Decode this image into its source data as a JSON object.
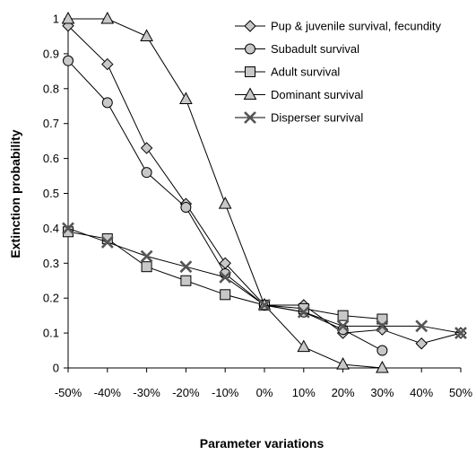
{
  "chart_data": {
    "type": "line",
    "title": "",
    "xlabel": "Parameter variations",
    "ylabel": "Extinction probability",
    "categories": [
      "-50%",
      "-40%",
      "-30%",
      "-20%",
      "-10%",
      "0%",
      "10%",
      "20%",
      "30%",
      "40%",
      "50%"
    ],
    "ylim": [
      0,
      1
    ],
    "yticks": [
      "0",
      "0.1",
      "0.2",
      "0.3",
      "0.4",
      "0.5",
      "0.6",
      "0.7",
      "0.8",
      "0.9",
      "1"
    ],
    "grid": false,
    "legend_position": "top-right",
    "series": [
      {
        "name": "Pup & juvenile survival, fecundity",
        "marker": "diamond",
        "values": [
          0.98,
          0.87,
          0.63,
          0.47,
          0.3,
          0.18,
          0.18,
          0.1,
          0.11,
          0.07,
          0.1
        ]
      },
      {
        "name": "Subadult survival",
        "marker": "circle",
        "values": [
          0.88,
          0.76,
          0.56,
          0.46,
          0.27,
          0.18,
          0.16,
          0.11,
          0.05,
          null,
          null
        ]
      },
      {
        "name": "Adult survival",
        "marker": "square",
        "values": [
          0.39,
          0.37,
          0.29,
          0.25,
          0.21,
          0.18,
          0.17,
          0.15,
          0.14,
          null,
          null
        ]
      },
      {
        "name": "Dominant survival",
        "marker": "triangle",
        "values": [
          1.0,
          1.0,
          0.95,
          0.77,
          0.47,
          0.18,
          0.06,
          0.01,
          0.0,
          null,
          null
        ]
      },
      {
        "name": "Disperser survival",
        "marker": "x",
        "values": [
          0.4,
          0.36,
          0.32,
          0.29,
          0.26,
          0.18,
          0.16,
          0.12,
          0.12,
          0.12,
          0.1
        ]
      }
    ]
  }
}
